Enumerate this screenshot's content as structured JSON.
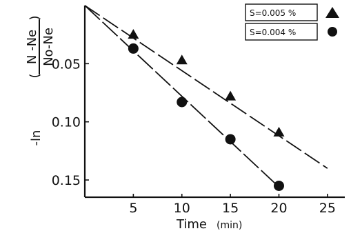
{
  "chart_data": {
    "type": "scatter",
    "xlabel": "Time",
    "xunit": "(min)",
    "ylabel_prefix": "-ln",
    "ylabel_numerator": "N -Ne",
    "ylabel_denominator": "No-Ne",
    "xlim": [
      0,
      27
    ],
    "ylim": [
      0,
      0.166
    ],
    "y_inverted": true,
    "x_ticks": [
      5,
      10,
      15,
      20,
      25
    ],
    "x_tick_labels": [
      "5",
      "10",
      "15",
      "20",
      "25"
    ],
    "y_ticks": [
      0.05,
      0.1,
      0.15
    ],
    "y_tick_labels": [
      "0.05",
      "0.10",
      "0.15"
    ],
    "legend_position": "top-right",
    "series": [
      {
        "name": "S=0.005 %",
        "marker": "triangle",
        "x": [
          5,
          10,
          15,
          20
        ],
        "y": [
          0.025,
          0.047,
          0.078,
          0.109
        ],
        "fit": {
          "x": [
            0,
            25
          ],
          "y": [
            0,
            0.14
          ]
        }
      },
      {
        "name": "S=0.004 %",
        "marker": "circle",
        "x": [
          5,
          10,
          15,
          20
        ],
        "y": [
          0.037,
          0.083,
          0.115,
          0.155
        ],
        "fit": {
          "x": [
            0,
            20
          ],
          "y": [
            0,
            0.156
          ]
        }
      }
    ]
  }
}
